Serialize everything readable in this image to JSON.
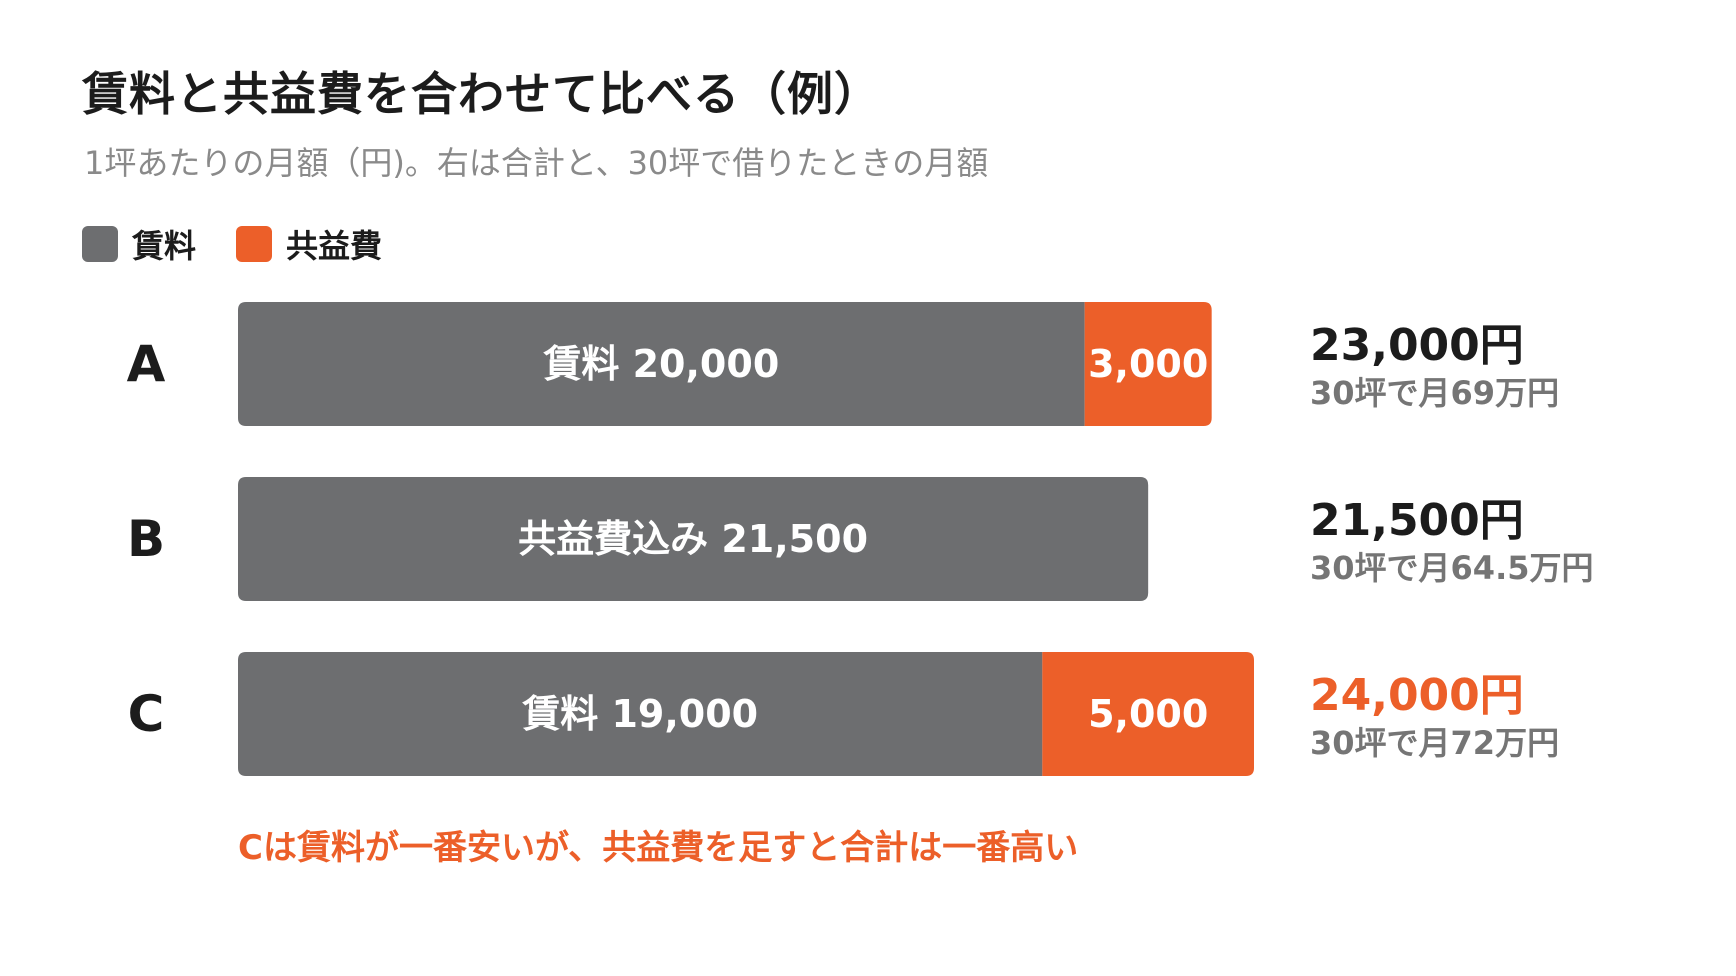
{
  "title": "賃料と共益費を合わせて比べる（例）",
  "subtitle": "1坪あたりの月額（円)。右は合計と、30坪で借りたときの月額",
  "legend": [
    {
      "label": "賃料",
      "color": "#6d6e70"
    },
    {
      "label": "共益費",
      "color": "#ec5f29"
    }
  ],
  "note": "Cは賃料が一番安いが、共益費を足すと合計は一番高い",
  "chart_data": {
    "type": "bar",
    "orientation": "horizontal",
    "stacked": true,
    "colors": {
      "rent": "#6d6e70",
      "fee": "#ec5f29",
      "highlight": "#ec5f29",
      "sub": "#757575",
      "label": "#1c1c1c"
    },
    "categories": [
      "A",
      "B",
      "C"
    ],
    "xlim": [
      0,
      24000
    ],
    "rows": [
      {
        "category": "A",
        "segments": [
          {
            "series": "賃料",
            "value": 20000,
            "label": "賃料 20,000"
          },
          {
            "series": "共益費",
            "value": 3000,
            "label": "3,000"
          }
        ],
        "total": 23000,
        "total_label": "23,000円",
        "monthly_label": "30坪で月69万円",
        "highlight": false
      },
      {
        "category": "B",
        "segments": [
          {
            "series": "共益費込み",
            "value": 21500,
            "label": "共益費込み 21,500"
          }
        ],
        "total": 21500,
        "total_label": "21,500円",
        "monthly_label": "30坪で月64.5万円",
        "highlight": false
      },
      {
        "category": "C",
        "segments": [
          {
            "series": "賃料",
            "value": 19000,
            "label": "賃料 19,000"
          },
          {
            "series": "共益費",
            "value": 5000,
            "label": "5,000"
          }
        ],
        "total": 24000,
        "total_label": "24,000円",
        "monthly_label": "30坪で月72万円",
        "highlight": true
      }
    ]
  }
}
